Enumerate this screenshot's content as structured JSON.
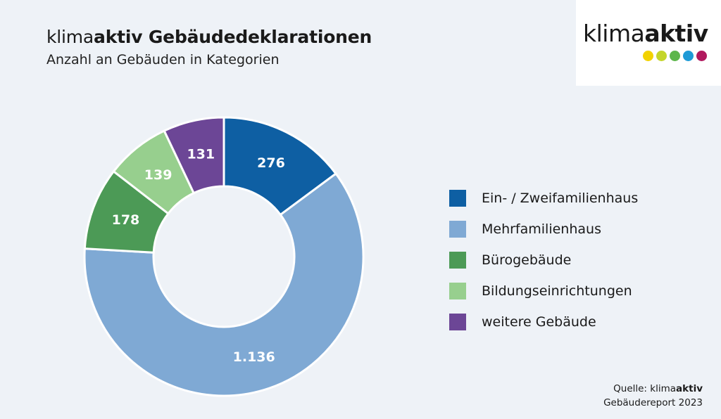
{
  "header": {
    "title_light": "klima",
    "title_bold": "aktiv Gebäudedeklarationen",
    "subtitle": "Anzahl an Gebäuden in Kategorien"
  },
  "logo": {
    "text_light": "klima",
    "text_bold": "aktiv",
    "dot_colors": [
      "#f2d200",
      "#c4d52a",
      "#5cb64a",
      "#1e9ad6",
      "#b1195e"
    ]
  },
  "chart_data": {
    "type": "pie",
    "donut": true,
    "categories": [
      "Ein- / Zweifamilienhaus",
      "Mehrfamilienhaus",
      "Bürogebäude",
      "Bildungseinrichtungen",
      "weitere Gebäude"
    ],
    "values": [
      276,
      1136,
      178,
      139,
      131
    ],
    "value_labels": [
      "276",
      "1.136",
      "178",
      "139",
      "131"
    ],
    "colors": [
      "#0e5fa3",
      "#7fa9d4",
      "#4c9a56",
      "#97cf8e",
      "#6c4696"
    ],
    "start": "12 o'clock, clockwise",
    "legend_position": "right"
  },
  "source": {
    "prefix": "Quelle: klima",
    "bold": "aktiv",
    "line2": "Gebäudereport 2023"
  }
}
